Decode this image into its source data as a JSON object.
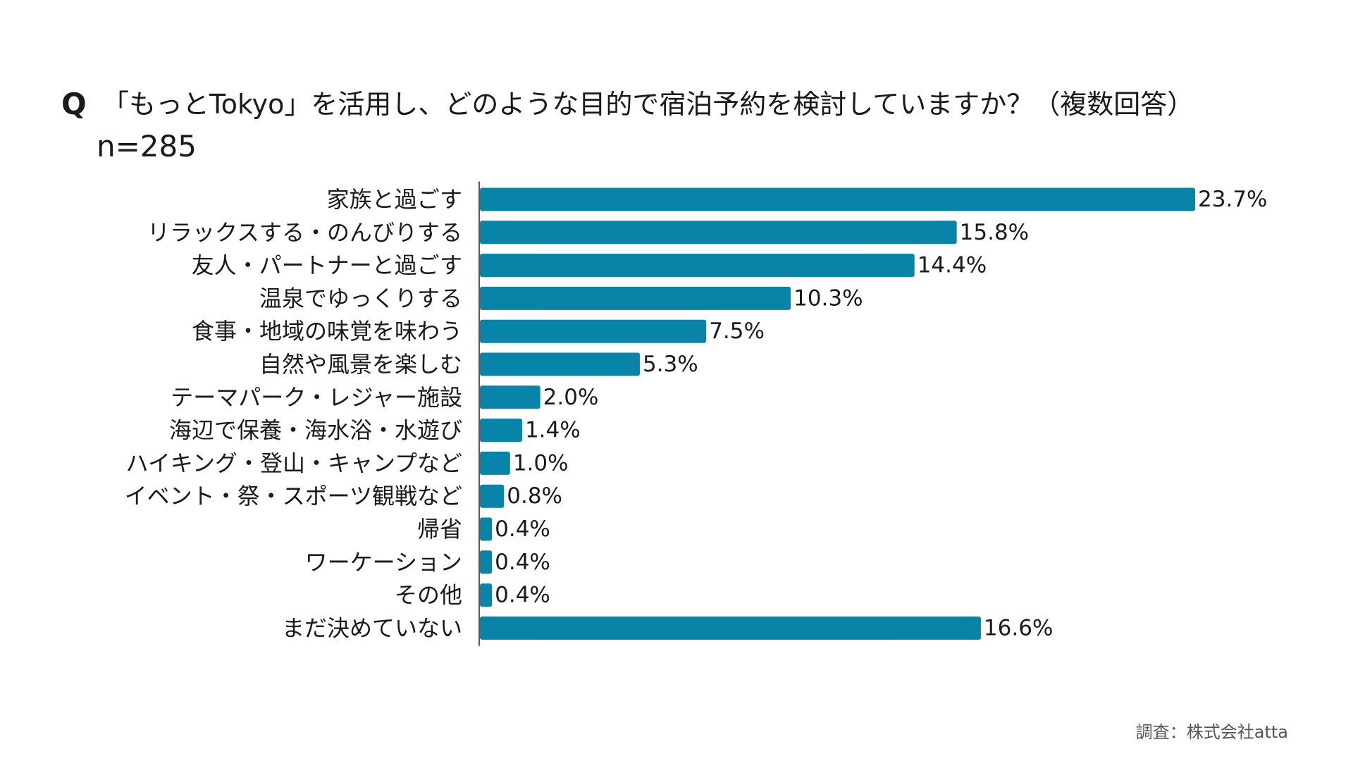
{
  "header": {
    "q_mark": "Q",
    "question": "「もっとTokyo」を活用し、どのような目的で宿泊予約を検討していますか？（複数回答）",
    "sample": "n=285"
  },
  "footer": {
    "source": "調査：株式会社atta"
  },
  "chart_data": {
    "type": "bar",
    "orientation": "horizontal",
    "title": "「もっとTokyo」を活用し、どのような目的で宿泊予約を検討していますか？（複数回答）",
    "categories": [
      "家族と過ごす",
      "リラックスする・のんびりする",
      "友人・パートナーと過ごす",
      "温泉でゆっくりする",
      "食事・地域の味覚を味わう",
      "自然や風景を楽しむ",
      "テーマパーク・レジャー施設",
      "海辺で保養・海水浴・水遊び",
      "ハイキング・登山・キャンプなど",
      "イベント・祭・スポーツ観戦など",
      "帰省",
      "ワーケーション",
      "その他",
      "まだ決めていない"
    ],
    "values": [
      23.7,
      15.8,
      14.4,
      10.3,
      7.5,
      5.3,
      2.0,
      1.4,
      1.0,
      0.8,
      0.4,
      0.4,
      0.4,
      16.6
    ],
    "value_labels": [
      "23.7%",
      "15.8%",
      "14.4%",
      "10.3%",
      "7.5%",
      "5.3%",
      "2.0%",
      "1.4%",
      "1.0%",
      "0.8%",
      "0.4%",
      "0.4%",
      "0.4%",
      "16.6%"
    ],
    "unit": "%",
    "xlim": [
      0,
      23.7
    ],
    "grid": false,
    "legend": "none",
    "bar_color": "#0784a8"
  }
}
